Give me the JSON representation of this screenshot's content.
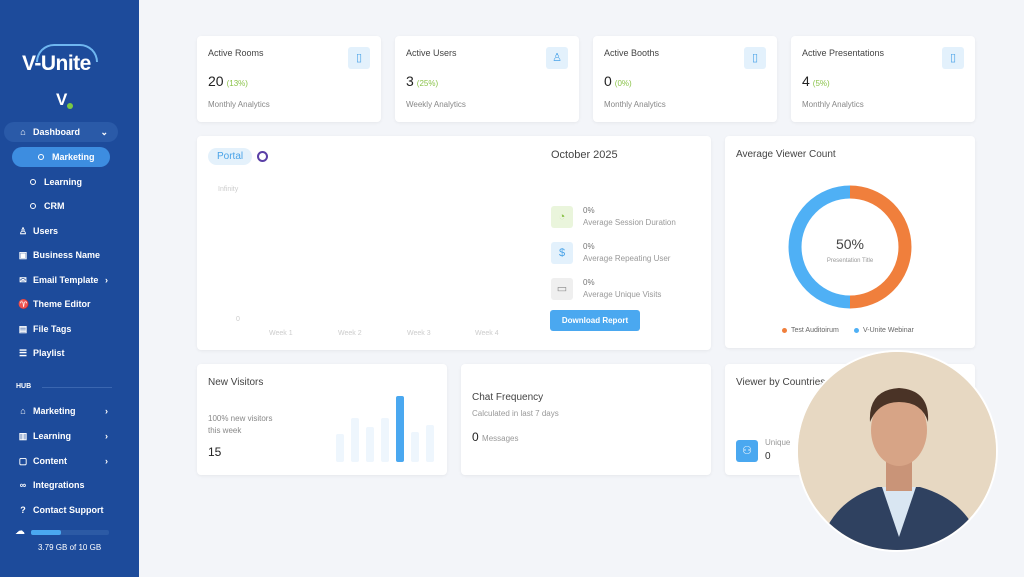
{
  "brand": {
    "name": "V-Unite",
    "mark": "V"
  },
  "sidebar": {
    "items": [
      {
        "label": "Dashboard",
        "icon": "home-icon",
        "chevron": "chevron-down-icon"
      },
      {
        "label": "Marketing",
        "sub": true,
        "active": true
      },
      {
        "label": "Learning",
        "sub": true
      },
      {
        "label": "CRM",
        "sub": true
      },
      {
        "label": "Users",
        "icon": "user-icon"
      },
      {
        "label": "Business Name",
        "icon": "briefcase-icon"
      },
      {
        "label": "Email Template",
        "icon": "mail-icon",
        "chevron": "chevron-right-icon"
      },
      {
        "label": "Theme Editor",
        "icon": "shirt-icon"
      },
      {
        "label": "File Tags",
        "icon": "tag-file-icon"
      },
      {
        "label": "Playlist",
        "icon": "playlist-icon"
      }
    ],
    "hub_label": "HUB",
    "hub_items": [
      {
        "label": "Marketing",
        "icon": "store-icon",
        "chevron": "chevron-right-icon"
      },
      {
        "label": "Learning",
        "icon": "classroom-icon",
        "chevron": "chevron-right-icon"
      },
      {
        "label": "Content",
        "icon": "content-icon",
        "chevron": "chevron-right-icon"
      },
      {
        "label": "Integrations",
        "icon": "link-icon"
      },
      {
        "label": "Contact Support",
        "icon": "help-icon"
      }
    ],
    "storage": {
      "text": "3.79 GB of 10 GB",
      "used_fraction": 0.379
    }
  },
  "stats": [
    {
      "title": "Active Rooms",
      "value": "20",
      "pct": "(13%)",
      "sub": "Monthly Analytics",
      "icon": "door-icon"
    },
    {
      "title": "Active Users",
      "value": "3",
      "pct": "(25%)",
      "sub": "Weekly Analytics",
      "icon": "user-plus-icon"
    },
    {
      "title": "Active Booths",
      "value": "0",
      "pct": "(0%)",
      "sub": "Monthly Analytics",
      "icon": "door-icon"
    },
    {
      "title": "Active Presentations",
      "value": "4",
      "pct": "(5%)",
      "sub": "Monthly Analytics",
      "icon": "door-icon"
    }
  ],
  "portal": {
    "tab": "Portal",
    "y_top": "Infinity",
    "y_bottom": "0",
    "weeks": [
      "Week 1",
      "Week 2",
      "Week 3",
      "Week 4"
    ],
    "month": "October 2025",
    "metrics": [
      {
        "value": "0%",
        "label": "Average Session Duration",
        "icon": "pie-chart-icon",
        "color": "#8bc34a",
        "bg": "#eaf5dc"
      },
      {
        "value": "0%",
        "label": "Average Repeating User",
        "icon": "dollar-icon",
        "color": "#4aa3e8",
        "bg": "#e3f1fc"
      },
      {
        "value": "0%",
        "label": "Average Unique Visits",
        "icon": "card-icon",
        "color": "#888",
        "bg": "#efefef"
      }
    ],
    "download": "Download Report"
  },
  "viewer": {
    "title": "Average Viewer Count",
    "center_value": "50%",
    "center_label": "Presentation Title",
    "slices": [
      {
        "name": "Test Auditoirum",
        "value": 50,
        "color": "#f07f3c"
      },
      {
        "name": "V-Unite Webinar",
        "value": 50,
        "color": "#4fb0f5"
      }
    ]
  },
  "new_visitors": {
    "title": "New Visitors",
    "line1": "100% new visitors",
    "line2": "this week",
    "value": "15",
    "bars": [
      85,
      130,
      105,
      130,
      197,
      90,
      110
    ],
    "highlight_index": 4,
    "accent": "#4aa8f0"
  },
  "chat": {
    "title": "Chat Frequency",
    "sub": "Calculated in last 7 days",
    "value": "0",
    "unit": "Messages"
  },
  "country": {
    "title": "Viewer by Countries",
    "label": "Unique",
    "value": "0"
  }
}
